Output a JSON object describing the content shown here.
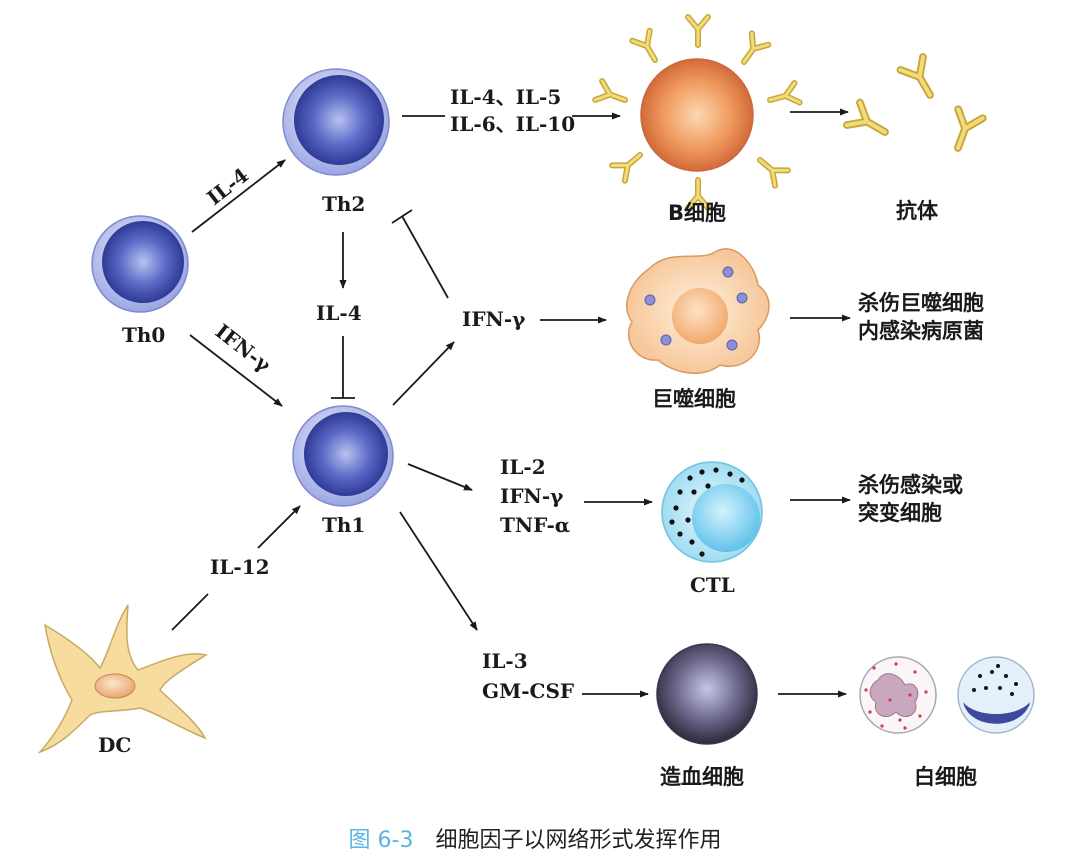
{
  "nodes": {
    "th0": "Th0",
    "th2": "Th2",
    "th1": "Th1",
    "dc": "DC",
    "b_cell": "B细胞",
    "antibody": "抗体",
    "macrophage": "巨噬细胞",
    "ctl": "CTL",
    "hematopoietic": "造血细胞",
    "leukocyte": "白细胞"
  },
  "edge_labels": {
    "th0_th2": "IL-4",
    "th0_th1": "IFN-γ",
    "th2_b_line1": "IL-4、IL-5",
    "th2_b_line2": "IL-6、IL-10",
    "th2_th1": "IL-4",
    "th1_mac": "IFN-γ",
    "th1_ctl_line1": "IL-2",
    "th1_ctl_line2": "IFN-γ",
    "th1_ctl_line3": "TNF-α",
    "dc_th1": "IL-12",
    "th1_hema_line1": "IL-3",
    "th1_hema_line2": "GM-CSF"
  },
  "outcomes": {
    "macrophage_line1": "杀伤巨噬细胞",
    "macrophage_line2": "内感染病原菌",
    "ctl_line1": "杀伤感染或",
    "ctl_line2": "突变细胞"
  },
  "caption": {
    "number": "图 6-3",
    "text": "细胞因子以网络形式发挥作用"
  }
}
